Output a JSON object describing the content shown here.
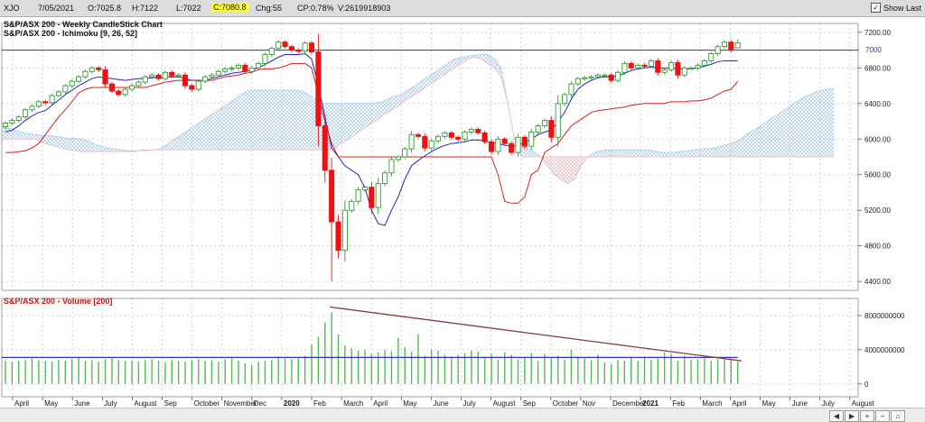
{
  "toolbar": {
    "symbol": "XJO",
    "date": "7/05/2021",
    "open": "O:7025.8",
    "high": "H:7122",
    "low": "L:7022",
    "close": "C:7080.8",
    "change": "Chg:55",
    "change_pct": "CP:0.78%",
    "volume": "V:2619918903",
    "show_last_label": "Show Last",
    "show_last_checked": true
  },
  "price_panel": {
    "title": "S&P/ASX 200 - Weekly CandleStick Chart",
    "subtitle": "S&P/ASX 200 - Ichimoku [9, 26, 52]",
    "line_label": "7000"
  },
  "volume_panel": {
    "title": "S&P/ASX 200 - Volume [200]"
  },
  "colors": {
    "up": "#2e9e2e",
    "down": "#ee1111",
    "tenkan": "#2323c8",
    "kijun": "#d42020",
    "cloud_bull": "#a9cbe8",
    "cloud_bear": "#f1b6b6",
    "volume": "#55b855",
    "volume_ma": "#3232bf",
    "trendline": "#8b3a3a",
    "horizontal_line": "#36368c"
  },
  "icons": [
    "scroll-left-icon",
    "scroll-right-icon",
    "zoom-in-icon",
    "zoom-out-icon",
    "home-icon"
  ],
  "chart_data": [
    {
      "type": "candlestick",
      "title": "S&P/ASX 200 - Weekly CandleStick Chart",
      "x_labels": [
        "April",
        "May",
        "June",
        "July",
        "August",
        "Sep",
        "October",
        "November",
        "Dec",
        "2020",
        "Feb",
        "March",
        "April",
        "May",
        "June",
        "July",
        "August",
        "Sep",
        "October",
        "Nov",
        "December",
        "2021",
        "Feb",
        "March",
        "April",
        "May",
        "June",
        "July",
        "August"
      ],
      "y_ticks": [
        4400,
        4800,
        5200,
        5600,
        6000,
        6400,
        6800,
        7200
      ],
      "ylim": [
        4300,
        7300
      ],
      "grid": true,
      "horizontal_line": 7000,
      "last_bar": {
        "open": 7025.8,
        "high": 7122,
        "low": 7022,
        "close": 7080.8
      },
      "closes": [
        6180,
        6210,
        6250,
        6330,
        6370,
        6420,
        6410,
        6490,
        6530,
        6600,
        6650,
        6700,
        6760,
        6800,
        6780,
        6620,
        6540,
        6500,
        6560,
        6600,
        6640,
        6700,
        6720,
        6680,
        6750,
        6710,
        6720,
        6600,
        6560,
        6650,
        6700,
        6720,
        6760,
        6790,
        6800,
        6830,
        6760,
        6800,
        6850,
        6950,
        7020,
        7090,
        7040,
        7000,
        6990,
        7080,
        6980,
        6150,
        5650,
        5070,
        4750,
        5200,
        5300,
        5430,
        5460,
        5230,
        5500,
        5620,
        5770,
        5800,
        5890,
        6050,
        6030,
        5900,
        5980,
        6030,
        6070,
        6020,
        6000,
        6080,
        6110,
        6070,
        5970,
        5860,
        6000,
        5950,
        5850,
        6020,
        5920,
        6080,
        6150,
        6210,
        6020,
        6400,
        6500,
        6620,
        6680,
        6690,
        6700,
        6720,
        6720,
        6660,
        6750,
        6850,
        6800,
        6830,
        6820,
        6880,
        6750,
        6780,
        6860,
        6720,
        6800,
        6800,
        6830,
        6880,
        6960,
        7040,
        7090,
        7000,
        7080
      ],
      "series": [
        {
          "name": "Tenkan",
          "values": [
            6080,
            6100,
            6150,
            6210,
            6260,
            6300,
            6320,
            6380,
            6440,
            6500,
            6550,
            6600,
            6640,
            6680,
            6700,
            6690,
            6680,
            6670,
            6660,
            6670,
            6680,
            6680,
            6690,
            6690,
            6700,
            6700,
            6700,
            6680,
            6660,
            6660,
            6660,
            6680,
            6700,
            6720,
            6740,
            6750,
            6760,
            6780,
            6800,
            6840,
            6880,
            6920,
            6950,
            6950,
            6950,
            6960,
            6900,
            6600,
            6250,
            5900,
            5800,
            5700,
            5650,
            5600,
            5450,
            5200,
            5050,
            5030,
            5200,
            5350,
            5550,
            5700,
            5760,
            5810,
            5860,
            5900,
            5930,
            5950,
            5960,
            5970,
            5990,
            5990,
            5980,
            5960,
            5950,
            5930,
            5920,
            5930,
            5960,
            6000,
            6050,
            6080,
            6100,
            6200,
            6300,
            6450,
            6560,
            6620,
            6660,
            6690,
            6700,
            6700,
            6710,
            6740,
            6770,
            6790,
            6800,
            6810,
            6800,
            6800,
            6800,
            6790,
            6790,
            6790,
            6800,
            6820,
            6840,
            6870,
            6880,
            6880,
            6880
          ]
        },
        {
          "name": "Kijun",
          "values": [
            5850,
            5850,
            5860,
            5870,
            5900,
            5950,
            6050,
            6150,
            6250,
            6330,
            6420,
            6520,
            6560,
            6580,
            6580,
            6580,
            6580,
            6580,
            6580,
            6580,
            6580,
            6580,
            6600,
            6620,
            6640,
            6650,
            6660,
            6660,
            6660,
            6660,
            6660,
            6660,
            6680,
            6700,
            6710,
            6720,
            6740,
            6750,
            6780,
            6790,
            6790,
            6800,
            6820,
            6850,
            6850,
            6850,
            6800,
            6500,
            6200,
            5950,
            5800,
            5800,
            5800,
            5800,
            5800,
            5800,
            5800,
            5800,
            5800,
            5800,
            5800,
            5800,
            5800,
            5800,
            5800,
            5800,
            5800,
            5800,
            5800,
            5800,
            5800,
            5800,
            5800,
            5800,
            5600,
            5300,
            5280,
            5280,
            5350,
            5600,
            5650,
            5850,
            5900,
            5950,
            6050,
            6150,
            6200,
            6250,
            6300,
            6320,
            6330,
            6340,
            6350,
            6360,
            6380,
            6390,
            6400,
            6400,
            6400,
            6400,
            6420,
            6420,
            6420,
            6430,
            6430,
            6440,
            6460,
            6500,
            6540,
            6560,
            6650
          ]
        }
      ],
      "cloud": {
        "span_a": [
          6150,
          6120,
          6100,
          6080,
          6060,
          6050,
          6040,
          6040,
          6030,
          6020,
          6010,
          6010,
          6000,
          5980,
          5940,
          5920,
          5900,
          5890,
          5880,
          5870,
          5870,
          5870,
          5870,
          5880,
          5900,
          5950,
          6000,
          6050,
          6100,
          6150,
          6200,
          6250,
          6300,
          6350,
          6400,
          6450,
          6500,
          6550,
          6550,
          6550,
          6550,
          6550,
          6550,
          6550,
          6550,
          6550,
          6500,
          6450,
          6400,
          6400,
          6400,
          6400,
          6400,
          6400,
          6400,
          6400,
          6400,
          6420,
          6450,
          6480,
          6500,
          6550,
          6600,
          6650,
          6700,
          6750,
          6800,
          6850,
          6900,
          6920,
          6930,
          6940,
          6950,
          6950,
          6900,
          6800,
          6400,
          6000,
          5950,
          5900,
          5850,
          5800,
          5700,
          5600,
          5550,
          5500,
          5550,
          5700,
          5800,
          5850,
          5870,
          5880,
          5880,
          5880,
          5880,
          5880,
          5880,
          5880,
          5870,
          5850,
          5850,
          5850,
          5860,
          5870,
          5880,
          5890,
          5890,
          5900,
          5920,
          5940,
          5960,
          6000,
          6060,
          6100,
          6150,
          6200,
          6250,
          6300,
          6350,
          6400,
          6450,
          6490,
          6520,
          6550,
          6560,
          6570
        ],
        "span_b": [
          6000,
          6000,
          6000,
          6000,
          6000,
          6000,
          5960,
          5940,
          5920,
          5900,
          5880,
          5870,
          5860,
          5860,
          5860,
          5860,
          5860,
          5860,
          5860,
          5860,
          5860,
          5880,
          5880,
          5880,
          5880,
          5880,
          5880,
          5880,
          5880,
          5880,
          5880,
          5880,
          5880,
          5880,
          5880,
          5880,
          5880,
          5880,
          5880,
          5880,
          5880,
          5880,
          5880,
          5880,
          5880,
          5880,
          5880,
          5880,
          5880,
          5880,
          5900,
          5950,
          6000,
          6050,
          6100,
          6150,
          6200,
          6250,
          6300,
          6350,
          6400,
          6450,
          6500,
          6550,
          6600,
          6650,
          6700,
          6750,
          6800,
          6850,
          6900,
          6920,
          6900,
          6850,
          6800,
          6700,
          6400,
          6000,
          5800,
          5800,
          5800,
          5800,
          5800,
          5800,
          5800,
          5800,
          5800,
          5800,
          5800,
          5800,
          5800,
          5800,
          5800,
          5800,
          5800,
          5800,
          5800,
          5800,
          5800,
          5800,
          5800,
          5800,
          5800,
          5800,
          5800,
          5800,
          5800,
          5800,
          5800,
          5800,
          5800,
          5800,
          5800,
          5800,
          5800,
          5800,
          5800,
          5800,
          5800,
          5800,
          5800,
          5800,
          5800,
          5800,
          5800,
          5800
        ]
      }
    },
    {
      "type": "bar",
      "title": "S&P/ASX 200 - Volume [200]",
      "y_ticks": [
        0,
        4000000000,
        8000000000
      ],
      "ylim": [
        -1500000000,
        10000000000
      ],
      "volume_ma": 3100000000,
      "trendline": {
        "from_value": 9000000000,
        "to_value": 2700000000
      },
      "values": [
        2700000000,
        2600000000,
        2700000000,
        2800000000,
        3000000000,
        2800000000,
        2700000000,
        2600000000,
        2800000000,
        2700000000,
        2900000000,
        3100000000,
        2700000000,
        2800000000,
        2600000000,
        2900000000,
        3100000000,
        2800000000,
        2700000000,
        2700000000,
        2600000000,
        2800000000,
        2900000000,
        2700000000,
        2500000000,
        2800000000,
        2700000000,
        2600000000,
        2800000000,
        2900000000,
        2700000000,
        2800000000,
        2600000000,
        2900000000,
        3000000000,
        2700000000,
        2400000000,
        2200000000,
        2600000000,
        2700000000,
        2800000000,
        3200000000,
        3000000000,
        2900000000,
        3100000000,
        3300000000,
        4600000000,
        5500000000,
        7200000000,
        8400000000,
        5800000000,
        4500000000,
        4200000000,
        3900000000,
        4000000000,
        3500000000,
        3700000000,
        4000000000,
        3800000000,
        5400000000,
        4300000000,
        3800000000,
        5800000000,
        3300000000,
        4000000000,
        3900000000,
        3400000000,
        3200000000,
        3400000000,
        3600000000,
        3900000000,
        3800000000,
        3000000000,
        3500000000,
        2800000000,
        3700000000,
        3400000000,
        2900000000,
        3100000000,
        3600000000,
        2700000000,
        3500000000,
        3000000000,
        3300000000,
        2800000000,
        4000000000,
        3200000000,
        3000000000,
        2800000000,
        3400000000,
        2500000000,
        2300000000,
        2800000000,
        2700000000,
        3100000000,
        2700000000,
        3200000000,
        2800000000,
        3000000000,
        3700000000,
        3500000000,
        2700000000,
        3300000000,
        2800000000,
        2900000000,
        3000000000,
        2700000000,
        2900000000,
        3000000000,
        2800000000,
        2600000000
      ]
    }
  ]
}
